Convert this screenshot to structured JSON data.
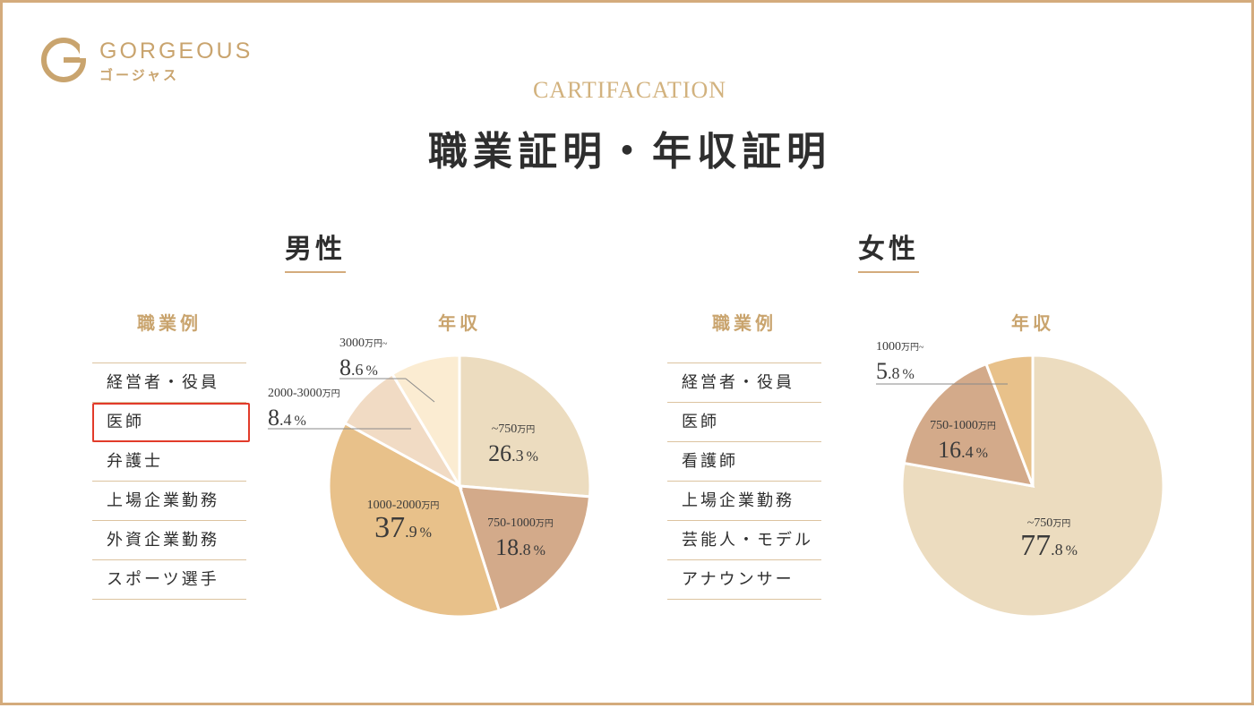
{
  "brand": {
    "name": "GORGEOUS",
    "kana": "ゴージャス"
  },
  "eyebrow": "CARTIFACATION",
  "title": "職業証明・年収証明",
  "colors": {
    "accent": "#d4ab7c",
    "highlight": "#e23b2a"
  },
  "men": {
    "heading": "男性",
    "jobs_heading": "職業例",
    "income_heading": "年収",
    "jobs": [
      "経営者・役員",
      "医師",
      "弁護士",
      "上場企業勤務",
      "外資企業勤務",
      "スポーツ選手"
    ],
    "highlighted_job": "医師"
  },
  "women": {
    "heading": "女性",
    "jobs_heading": "職業例",
    "income_heading": "年収",
    "jobs": [
      "経営者・役員",
      "医師",
      "看護師",
      "上場企業勤務",
      "芸能人・モデル",
      "アナウンサー"
    ]
  },
  "chart_data": [
    {
      "type": "pie",
      "title": "男性 年収",
      "slices": [
        {
          "label": "~750万円",
          "range": "~750",
          "unit": "万円",
          "value": 26.3,
          "color": "#ecdcbf"
        },
        {
          "label": "750-1000万円",
          "range": "750-1000",
          "unit": "万円",
          "value": 18.8,
          "color": "#d3aa8a"
        },
        {
          "label": "1000-2000万円",
          "range": "1000-2000",
          "unit": "万円",
          "value": 37.9,
          "color": "#e8c18a"
        },
        {
          "label": "2000-3000万円",
          "range": "2000-3000",
          "unit": "万円",
          "value": 8.4,
          "color": "#f1dbc4"
        },
        {
          "label": "3000万円~",
          "range": "3000",
          "unit": "万円~",
          "value": 8.6,
          "color": "#fbecd2"
        }
      ]
    },
    {
      "type": "pie",
      "title": "女性 年収",
      "slices": [
        {
          "label": "~750万円",
          "range": "~750",
          "unit": "万円",
          "value": 77.8,
          "color": "#ecdcbf"
        },
        {
          "label": "750-1000万円",
          "range": "750-1000",
          "unit": "万円",
          "value": 16.4,
          "color": "#d3aa8a"
        },
        {
          "label": "1000万円~",
          "range": "1000",
          "unit": "万円~",
          "value": 5.8,
          "color": "#e8c18a"
        }
      ]
    }
  ]
}
